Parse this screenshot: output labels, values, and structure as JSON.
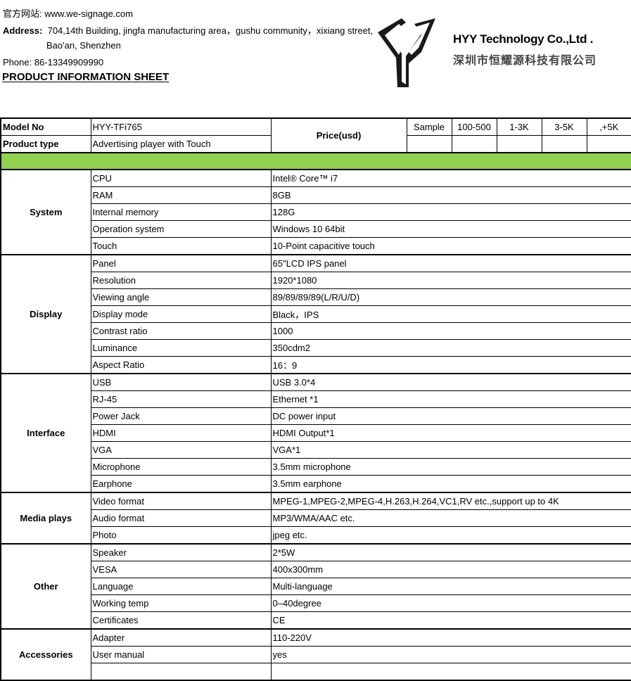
{
  "header": {
    "website_label": "官方网站:",
    "website": "www.we-signage.com",
    "address_label": "Address:",
    "address_line1": "704,14th Building, jingfa manufacturing area，gushu community，xixiang street,",
    "address_line2": "Bao'an, Shenzhen",
    "phone": "Phone: 86-13349909990",
    "title": "PRODUCT INFORMATION SHEET"
  },
  "logo": {
    "name": "HYY Technology Co.,Ltd .",
    "name_cn": "深圳市恒耀源科技有限公司"
  },
  "top": {
    "model_label": "Model No",
    "model": "HYY-TFi765",
    "type_label": "Product type",
    "type": "Advertising player with Touch",
    "price_label": "Price(usd)",
    "price_tiers": [
      "Sample",
      "100-500",
      "1-3K",
      "3-5K",
      ",+5K"
    ]
  },
  "sections": [
    {
      "name": "System",
      "rows": [
        [
          "CPU",
          "Intel® Core™ i7"
        ],
        [
          "RAM",
          "8GB"
        ],
        [
          "Internal memory",
          "128G"
        ],
        [
          "Operation system",
          "Windows 10 64bit"
        ],
        [
          "Touch",
          "10-Point capacitive touch"
        ]
      ]
    },
    {
      "name": "Display",
      "rows": [
        [
          "Panel",
          "65\"LCD IPS panel"
        ],
        [
          "Resolution",
          "1920*1080"
        ],
        [
          "Viewing angle",
          "89/89/89/89(L/R/U/D)"
        ],
        [
          "Display mode",
          "Black，IPS"
        ],
        [
          "Contrast ratio",
          "1000"
        ],
        [
          "Luminance",
          "350cdm2"
        ],
        [
          "Aspect Ratio",
          "16：9"
        ]
      ]
    },
    {
      "name": "Interface",
      "rows": [
        [
          "USB",
          "USB 3.0*4"
        ],
        [
          "RJ-45",
          "Ethernet *1"
        ],
        [
          "Power Jack",
          "DC power input"
        ],
        [
          "HDMI",
          "HDMI Output*1"
        ],
        [
          "VGA",
          "VGA*1"
        ],
        [
          "Microphone",
          "3.5mm microphone"
        ],
        [
          "Earphone",
          "3.5mm earphone"
        ]
      ]
    },
    {
      "name": "Media plays",
      "rows": [
        [
          "Video format",
          "MPEG-1,MPEG-2,MPEG-4,H.263,H.264,VC1,RV etc.,support up to 4K"
        ],
        [
          "Audio format",
          "MP3/WMA/AAC etc."
        ],
        [
          "Photo",
          "jpeg etc."
        ]
      ]
    },
    {
      "name": "Other",
      "rows": [
        [
          "Speaker",
          "2*5W"
        ],
        [
          "VESA",
          "400x300mm"
        ],
        [
          "Language",
          "Multi-language"
        ],
        [
          "Working temp",
          "0–40degree"
        ],
        [
          "Certificates",
          "CE"
        ]
      ]
    },
    {
      "name": "Accessories",
      "rows": [
        [
          "Adapter",
          "110-220V"
        ],
        [
          "User manual",
          "yes"
        ],
        [
          "",
          ""
        ]
      ]
    }
  ],
  "colors": {
    "section_band": "#92d050"
  }
}
